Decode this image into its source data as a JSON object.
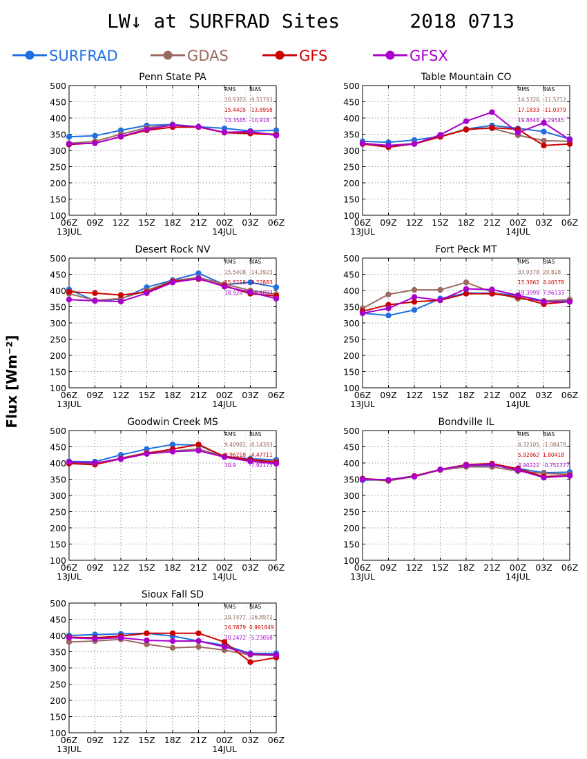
{
  "title": "LW↓ at SURFRAD Sites      2018 0713",
  "ylabel": "Flux [Wm⁻²]",
  "colors": {
    "SURFRAD": "#1f6fe0",
    "GDAS": "#9a6a60",
    "GFS": "#cc0000",
    "GFSX": "#aa00cc"
  },
  "legend": [
    {
      "name": "SURFRAD",
      "color": "#1f6fe0"
    },
    {
      "name": "GDAS",
      "color": "#9a6a60"
    },
    {
      "name": "GFS",
      "color": "#cc0000"
    },
    {
      "name": "GFSX",
      "color": "#aa00cc"
    }
  ],
  "stats_header": {
    "rms": "RMS",
    "bias": "BIAS"
  },
  "chart_data": [
    {
      "type": "line",
      "title": "Penn State PA",
      "categories": [
        "06Z",
        "09Z",
        "12Z",
        "15Z",
        "18Z",
        "21Z",
        "00Z",
        "03Z",
        "06Z"
      ],
      "date_labels": [
        "13JUL",
        "14JUL"
      ],
      "ylim": [
        100,
        500
      ],
      "yticks": [
        100,
        150,
        200,
        250,
        300,
        350,
        400,
        450,
        500
      ],
      "grid": true,
      "series": [
        {
          "name": "SURFRAD",
          "values": [
            342,
            345,
            362,
            377,
            380,
            373,
            368,
            360,
            362
          ]
        },
        {
          "name": "GDAS",
          "values": [
            322,
            328,
            350,
            370,
            378,
            372,
            356,
            355,
            350
          ]
        },
        {
          "name": "GFS",
          "values": [
            318,
            323,
            342,
            362,
            372,
            372,
            355,
            352,
            348
          ]
        },
        {
          "name": "GFSX",
          "values": [
            320,
            322,
            343,
            365,
            378,
            373,
            356,
            358,
            346
          ]
        }
      ],
      "stats": [
        {
          "model": "GDAS",
          "rms": "10.9383",
          "bias": "-9.51793"
        },
        {
          "model": "GFS",
          "rms": "15.4405",
          "bias": "-13.8958"
        },
        {
          "model": "GFSX",
          "rms": "13.3585",
          "bias": "-10.918"
        }
      ]
    },
    {
      "type": "line",
      "title": "Table Mountain CO",
      "categories": [
        "06Z",
        "09Z",
        "12Z",
        "15Z",
        "18Z",
        "21Z",
        "00Z",
        "03Z",
        "06Z"
      ],
      "date_labels": [
        "13JUL",
        "14JUL"
      ],
      "ylim": [
        100,
        500
      ],
      "yticks": [
        100,
        150,
        200,
        250,
        300,
        350,
        400,
        450,
        500
      ],
      "grid": true,
      "series": [
        {
          "name": "SURFRAD",
          "values": [
            328,
            325,
            332,
            343,
            366,
            377,
            368,
            358,
            335
          ]
        },
        {
          "name": "GDAS",
          "values": [
            322,
            315,
            322,
            342,
            366,
            368,
            347,
            330,
            328
          ]
        },
        {
          "name": "GFS",
          "values": [
            320,
            310,
            320,
            342,
            364,
            370,
            365,
            315,
            320
          ]
        },
        {
          "name": "GFSX",
          "values": [
            322,
            315,
            320,
            348,
            390,
            418,
            355,
            385,
            333
          ]
        }
      ],
      "stats": [
        {
          "model": "GDAS",
          "rms": "14.5326",
          "bias": "-11.5712"
        },
        {
          "model": "GFS",
          "rms": "17.1833",
          "bias": "-11.0379"
        },
        {
          "model": "GFSX",
          "rms": "19.8648",
          "bias": "5.29545"
        }
      ]
    },
    {
      "type": "line",
      "title": "Desert Rock NV",
      "categories": [
        "06Z",
        "09Z",
        "12Z",
        "15Z",
        "18Z",
        "21Z",
        "00Z",
        "03Z",
        "06Z"
      ],
      "date_labels": [
        "13JUL",
        "14JUL"
      ],
      "ylim": [
        100,
        500
      ],
      "yticks": [
        100,
        150,
        200,
        250,
        300,
        350,
        400,
        450,
        500
      ],
      "grid": true,
      "series": [
        {
          "name": "SURFRAD",
          "values": [
            403,
            368,
            373,
            410,
            432,
            453,
            418,
            425,
            410
          ]
        },
        {
          "name": "GDAS",
          "values": [
            390,
            370,
            375,
            400,
            430,
            440,
            420,
            400,
            388
          ]
        },
        {
          "name": "GFS",
          "values": [
            396,
            392,
            386,
            395,
            428,
            435,
            415,
            390,
            383
          ]
        },
        {
          "name": "GFSX",
          "values": [
            372,
            368,
            366,
            392,
            425,
            437,
            412,
            395,
            375
          ]
        }
      ],
      "stats": [
        {
          "model": "GDAS",
          "rms": "15.5408",
          "bias": "-14.3923"
        },
        {
          "model": "GFS",
          "rms": "15.8218",
          "bias": "-9.22883"
        },
        {
          "model": "GFSX",
          "rms": "18.928",
          "bias": "-16.4803"
        }
      ]
    },
    {
      "type": "line",
      "title": "Fort Peck MT",
      "categories": [
        "06Z",
        "09Z",
        "12Z",
        "15Z",
        "18Z",
        "21Z",
        "00Z",
        "03Z",
        "06Z"
      ],
      "date_labels": [
        "13JUL",
        "14JUL"
      ],
      "ylim": [
        100,
        500
      ],
      "yticks": [
        100,
        150,
        200,
        250,
        300,
        350,
        400,
        450,
        500
      ],
      "grid": true,
      "series": [
        {
          "name": "SURFRAD",
          "values": [
            330,
            323,
            340,
            375,
            392,
            392,
            385,
            368,
            367
          ]
        },
        {
          "name": "GDAS",
          "values": [
            345,
            388,
            402,
            402,
            425,
            395,
            375,
            368,
            372
          ]
        },
        {
          "name": "GFS",
          "values": [
            336,
            356,
            365,
            370,
            390,
            390,
            380,
            358,
            366
          ]
        },
        {
          "name": "GFSX",
          "values": [
            330,
            345,
            380,
            370,
            405,
            403,
            385,
            365,
            365
          ]
        }
      ],
      "stats": [
        {
          "model": "GDAS",
          "rms": "33.9378",
          "bias": "20.828"
        },
        {
          "model": "GFS",
          "rms": "15.3862",
          "bias": "4.40578"
        },
        {
          "model": "GFSX",
          "rms": "19.3999",
          "bias": "7.96133"
        }
      ]
    },
    {
      "type": "line",
      "title": "Goodwin Creek MS",
      "categories": [
        "06Z",
        "09Z",
        "12Z",
        "15Z",
        "18Z",
        "21Z",
        "00Z",
        "03Z",
        "06Z"
      ],
      "date_labels": [
        "13JUL",
        "14JUL"
      ],
      "ylim": [
        100,
        500
      ],
      "yticks": [
        100,
        150,
        200,
        250,
        300,
        350,
        400,
        450,
        500
      ],
      "grid": true,
      "series": [
        {
          "name": "SURFRAD",
          "values": [
            405,
            404,
            425,
            443,
            457,
            455,
            420,
            413,
            410
          ]
        },
        {
          "name": "GDAS",
          "values": [
            402,
            398,
            415,
            432,
            437,
            443,
            420,
            410,
            405
          ]
        },
        {
          "name": "GFS",
          "values": [
            398,
            395,
            413,
            430,
            443,
            457,
            420,
            410,
            402
          ]
        },
        {
          "name": "GFSX",
          "values": [
            403,
            400,
            412,
            428,
            435,
            438,
            418,
            405,
            398
          ]
        }
      ],
      "stats": [
        {
          "model": "GDAS",
          "rms": "9.40981",
          "bias": "-8.14393"
        },
        {
          "model": "GFS",
          "rms": "9.96218",
          "bias": "-4.47711"
        },
        {
          "model": "GFSX",
          "rms": "10.9",
          "bias": "-7.92175"
        }
      ]
    },
    {
      "type": "line",
      "title": "Bondville IL",
      "categories": [
        "06Z",
        "09Z",
        "12Z",
        "15Z",
        "18Z",
        "21Z",
        "00Z",
        "03Z",
        "06Z"
      ],
      "date_labels": [
        "13JUL",
        "14JUL"
      ],
      "ylim": [
        100,
        500
      ],
      "yticks": [
        100,
        150,
        200,
        250,
        300,
        350,
        400,
        450,
        500
      ],
      "grid": true,
      "series": [
        {
          "name": "SURFRAD",
          "values": [
            347,
            348,
            360,
            380,
            390,
            393,
            383,
            370,
            372
          ]
        },
        {
          "name": "GDAS",
          "values": [
            350,
            345,
            358,
            378,
            388,
            388,
            375,
            368,
            365
          ]
        },
        {
          "name": "GFS",
          "values": [
            352,
            347,
            360,
            380,
            395,
            398,
            382,
            358,
            362
          ]
        },
        {
          "name": "GFSX",
          "values": [
            350,
            348,
            358,
            380,
            393,
            395,
            378,
            355,
            360
          ]
        }
      ],
      "stats": [
        {
          "model": "GDAS",
          "rms": "4.32105",
          "bias": "-1.08478"
        },
        {
          "model": "GFS",
          "rms": "5.92862",
          "bias": "1.80418"
        },
        {
          "model": "GFSX",
          "rms": "4.90222",
          "bias": "-0.751377"
        }
      ]
    },
    {
      "type": "line",
      "title": "Sioux Fall SD",
      "categories": [
        "06Z",
        "09Z",
        "12Z",
        "15Z",
        "18Z",
        "21Z",
        "00Z",
        "03Z",
        "06Z"
      ],
      "date_labels": [
        "13JUL",
        "14JUL"
      ],
      "ylim": [
        100,
        500
      ],
      "yticks": [
        100,
        150,
        200,
        250,
        300,
        350,
        400,
        450,
        500
      ],
      "grid": true,
      "series": [
        {
          "name": "SURFRAD",
          "values": [
            400,
            403,
            405,
            407,
            398,
            383,
            370,
            345,
            345
          ]
        },
        {
          "name": "GDAS",
          "values": [
            380,
            383,
            388,
            373,
            362,
            365,
            355,
            340,
            338
          ]
        },
        {
          "name": "GFS",
          "values": [
            395,
            393,
            398,
            407,
            407,
            407,
            380,
            318,
            332
          ]
        },
        {
          "name": "GFSX",
          "values": [
            393,
            390,
            393,
            385,
            383,
            383,
            365,
            343,
            340
          ]
        }
      ],
      "stats": [
        {
          "model": "GDAS",
          "rms": "19.7477",
          "bias": "-16.8972"
        },
        {
          "model": "GFS",
          "rms": "16.7879",
          "bias": "0.991849"
        },
        {
          "model": "GFSX",
          "rms": "10.2472",
          "bias": "-5.23058"
        }
      ]
    }
  ]
}
